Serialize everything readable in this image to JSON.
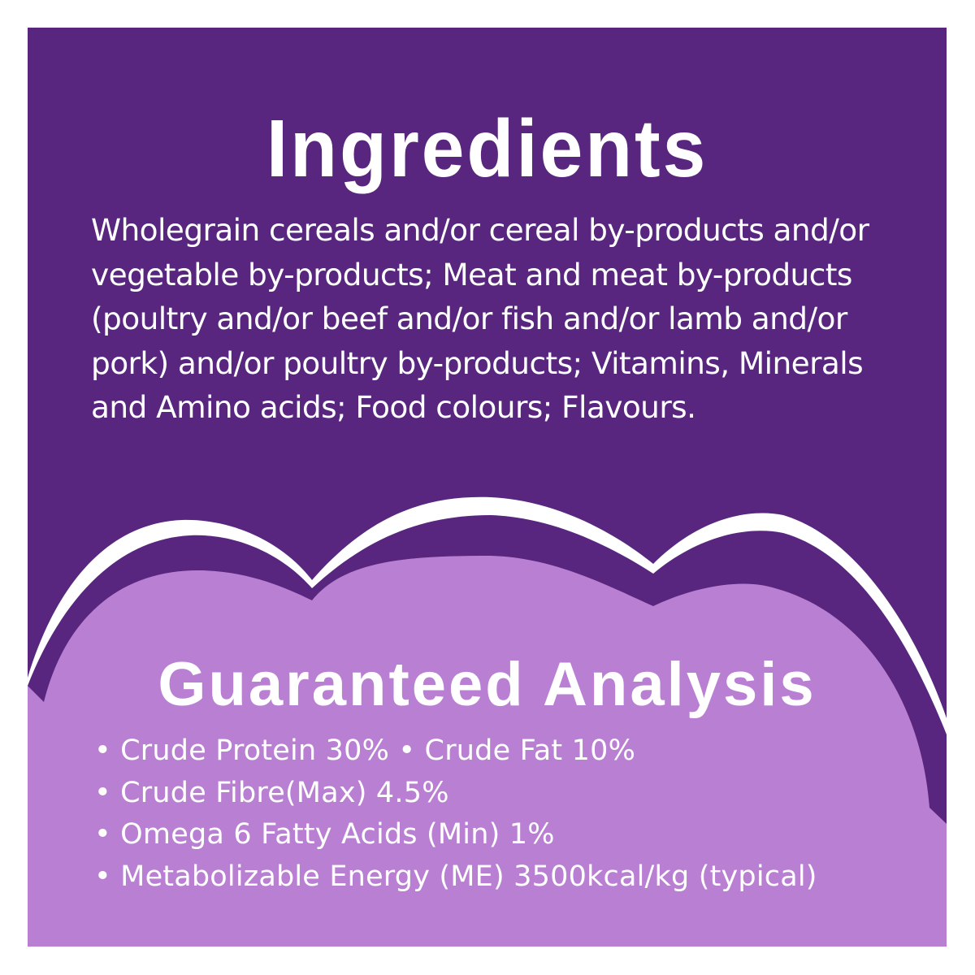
{
  "ingredients": {
    "title": "Ingredients",
    "text": "Wholegrain cereals and/or cereal by-products and/or vegetable by-products; Meat and meat by-products (poultry and/or beef and/or fish and/or lamb and/or pork) and/or poultry by-products; Vitamins, Minerals and Amino acids; Food colours; Flavours."
  },
  "analysis": {
    "title": "Guaranteed Analysis",
    "lines": [
      "• Crude Protein 30% • Crude Fat 10%",
      "• Crude Fibre(Max) 4.5%",
      "• Omega 6 Fatty Acids (Min) 1%",
      "• Metabolizable Energy (ME) 3500kcal/kg (typical)"
    ]
  },
  "colors": {
    "dark_purple": "#58267e",
    "light_purple": "#b97fd2",
    "text": "#ffffff"
  }
}
